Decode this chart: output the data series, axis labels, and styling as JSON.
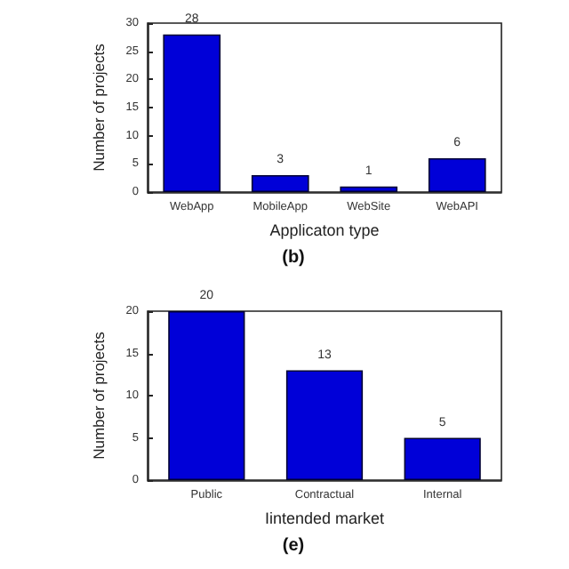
{
  "chart_data": [
    {
      "type": "bar",
      "title": "(b)",
      "xlabel": "Applicaton type",
      "ylabel": "Number of projects",
      "categories": [
        "WebApp",
        "MobileApp",
        "WebSite",
        "WebAPI"
      ],
      "values": [
        28,
        3,
        1,
        6
      ],
      "color": "#0000d8",
      "ylim": [
        0,
        30
      ],
      "yticks": [
        0,
        5,
        10,
        15,
        20,
        25,
        30
      ],
      "grid": false,
      "data_labels": true
    },
    {
      "type": "bar",
      "title": "(e)",
      "xlabel": "Iintended market",
      "ylabel": "Number of projects",
      "categories": [
        "Public",
        "Contractual",
        "Internal"
      ],
      "values": [
        20,
        13,
        5
      ],
      "color": "#0000d8",
      "ylim": [
        0,
        20
      ],
      "yticks": [
        0,
        5,
        10,
        15,
        20
      ],
      "grid": false,
      "data_labels": true
    }
  ]
}
